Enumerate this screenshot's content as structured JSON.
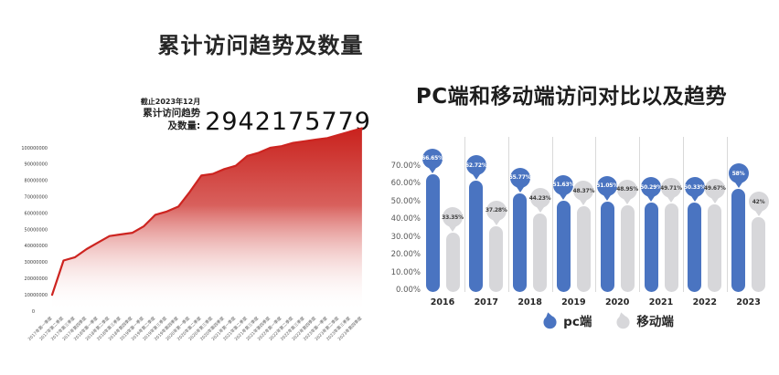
{
  "page": {
    "background": "#ffffff"
  },
  "chart_data": [
    {
      "type": "area",
      "title": "累计访问趋势及数量",
      "annotation": {
        "asof": "截止2023年12月",
        "label": "累计访问趋势及数量:",
        "value": "2942175779"
      },
      "x": [
        "2017年第一季度",
        "2017年第二季度",
        "2017年第三季度",
        "2017年第四季度",
        "2018年第一季度",
        "2018年第二季度",
        "2018年第三季度",
        "2018年第四季度",
        "2019年第一季度",
        "2019年第二季度",
        "2019年第三季度",
        "2019年第四季度",
        "2020年第一季度",
        "2020年第二季度",
        "2020年第三季度",
        "2020年第四季度",
        "2021年第一季度",
        "2021年第二季度",
        "2021年第三季度",
        "2021年第四季度",
        "2022年第一季度",
        "2022年第二季度",
        "2022年第三季度",
        "2022年第四季度",
        "2023年第一季度",
        "2023年第二季度",
        "2023年第三季度",
        "2023年第四季度"
      ],
      "values": [
        10000000,
        31000000,
        33000000,
        38000000,
        42000000,
        46000000,
        47000000,
        48000000,
        52000000,
        59000000,
        61000000,
        64000000,
        73000000,
        83000000,
        84000000,
        87000000,
        89000000,
        95000000,
        97000000,
        100000000,
        101000000,
        103000000,
        104000000,
        105000000,
        106000000,
        108000000,
        110000000,
        112000000
      ],
      "yticks": [
        0,
        10000000,
        20000000,
        30000000,
        40000000,
        50000000,
        60000000,
        70000000,
        80000000,
        90000000,
        100000000
      ],
      "ylim": [
        0,
        115000000
      ],
      "grid": false,
      "colors": {
        "line": "#cd2420",
        "fill_top": "#c9221d",
        "fill_bottom": "#ffffff"
      }
    },
    {
      "type": "bar",
      "title": "PC端和移动端访问对比以及趋势",
      "categories": [
        "2016",
        "2017",
        "2018",
        "2019",
        "2020",
        "2021",
        "2022",
        "2023"
      ],
      "series": [
        {
          "name": "pc端",
          "color": "#4a74c1",
          "text_color": "#ffffff",
          "values": [
            66.65,
            62.72,
            55.77,
            51.63,
            51.05,
            50.29,
            50.33,
            58
          ],
          "labels": [
            "66.65%",
            "62.72%",
            "55.77%",
            "51.63%",
            "51.05%",
            "50.29%",
            "50.33%",
            "58%"
          ]
        },
        {
          "name": "移动端",
          "color": "#d7d7da",
          "text_color": "#3f3f3f",
          "values": [
            33.35,
            37.28,
            44.23,
            48.37,
            48.95,
            49.71,
            49.67,
            42
          ],
          "labels": [
            "33.35%",
            "37.28%",
            "44.23%",
            "48.37%",
            "48.95%",
            "49.71%",
            "49.67%",
            "42%"
          ]
        }
      ],
      "yticks": [
        "70.00%",
        "60.00%",
        "50.00%",
        "40.00%",
        "30.00%",
        "20.00%",
        "10.00%",
        "0.00%"
      ],
      "ylim": [
        0,
        70
      ],
      "grid": false,
      "legend_position": "bottom"
    }
  ]
}
